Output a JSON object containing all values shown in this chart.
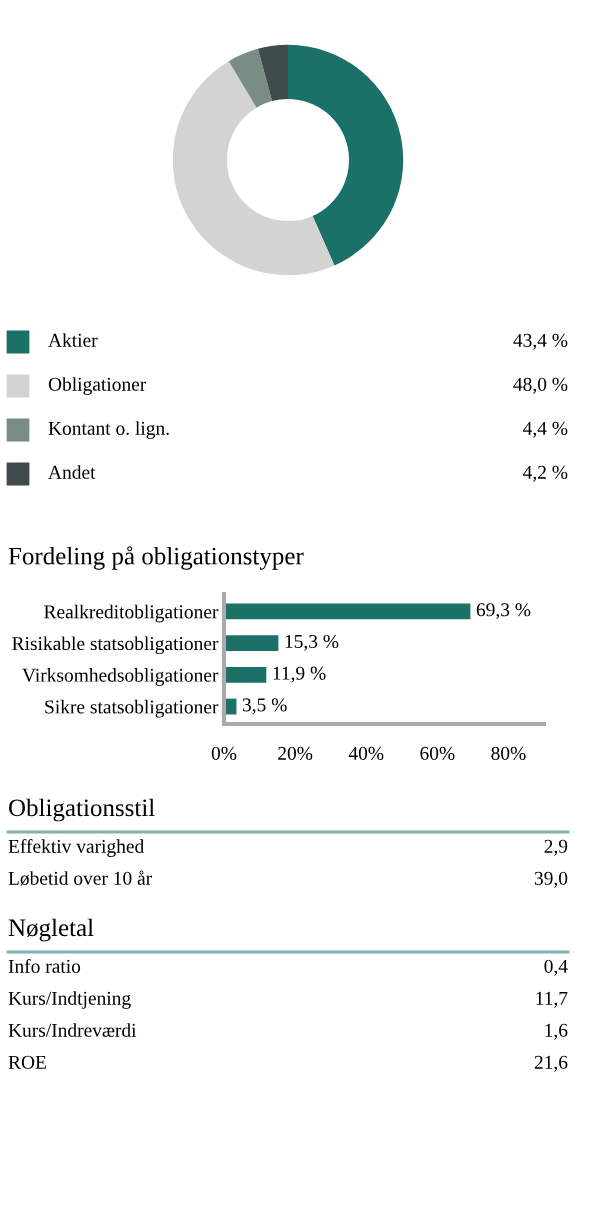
{
  "chart_data": [
    {
      "type": "donut",
      "categories": [
        "Aktier",
        "Obligationer",
        "Kontant o. lign.",
        "Andet"
      ],
      "values": [
        43.4,
        48.0,
        4.4,
        4.2
      ],
      "colors": [
        "#1b7068",
        "#d3d3d3",
        "#7a8c86",
        "#3f4b4b"
      ],
      "value_labels": [
        "43,4 %",
        "48,0 %",
        "4,4 %",
        "4,2 %"
      ],
      "legend": "bottom"
    },
    {
      "type": "bar",
      "orientation": "horizontal",
      "title": "Fordeling på obligationstyper",
      "categories": [
        "Realkreditobligationer",
        "Risikable statsobligationer",
        "Virksomhedsobligationer",
        "Sikre statsobligationer"
      ],
      "values": [
        69.3,
        15.3,
        11.9,
        3.5
      ],
      "color": "#1b7068",
      "value_labels": [
        "69,3 %",
        "15,3 %",
        "11,9 %",
        "3,5 %"
      ],
      "xlim": [
        0,
        90
      ],
      "xticks": [
        {
          "value": 0,
          "label": "0%"
        },
        {
          "value": 20,
          "label": "20%"
        },
        {
          "value": 40,
          "label": "40%"
        },
        {
          "value": 60,
          "label": "60%"
        },
        {
          "value": 80,
          "label": "80%"
        }
      ],
      "grid": false
    },
    {
      "type": "other",
      "title": "Obligationsstil",
      "categories": [
        "Effektiv varighed",
        "Løbetid over 10 år"
      ],
      "value_labels": [
        "2,9",
        "39,0"
      ]
    },
    {
      "type": "other",
      "title": "Nøgletal",
      "categories": [
        "Info ratio",
        "Kurs/Indtjening",
        "Kurs/Indreværdi",
        "ROE"
      ],
      "value_labels": [
        "0,4",
        "11,7",
        "1,6",
        "21,6"
      ]
    }
  ]
}
